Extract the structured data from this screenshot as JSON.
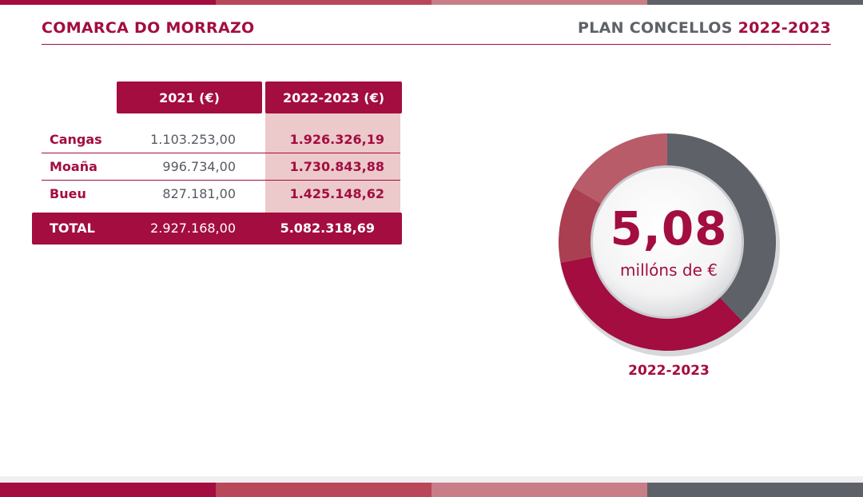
{
  "header": {
    "left_title": "COMARCA DO MORRAZO",
    "right_title": "PLAN CONCELLOS",
    "right_year": "2022-2023"
  },
  "colors": {
    "brand": "#a30d40",
    "stripes": [
      "#a30d40",
      "#b94659",
      "#c97d86",
      "#5e6168"
    ]
  },
  "table": {
    "col_2021": "2021 (€)",
    "col_2223": "2022-2023 (€)",
    "rows": [
      {
        "name": "Cangas",
        "v2021": "1.103.253,00",
        "v2223": "1.926.326,19"
      },
      {
        "name": "Moaña",
        "v2021": "996.734,00",
        "v2223": "1.730.843,88"
      },
      {
        "name": "Bueu",
        "v2021": "827.181,00",
        "v2223": "1.425.148,62"
      }
    ],
    "total": {
      "name": "TOTAL",
      "v2021": "2.927.168,00",
      "v2223": "5.082.318,69"
    }
  },
  "chart_data": {
    "type": "pie",
    "categories": [
      "Cangas",
      "Moaña",
      "Bueu"
    ],
    "values": [
      1926326.19,
      1730843.88,
      1425148.62
    ],
    "center_value": "5,08",
    "center_unit": "millóns de €",
    "year_label": "2022-2023"
  }
}
